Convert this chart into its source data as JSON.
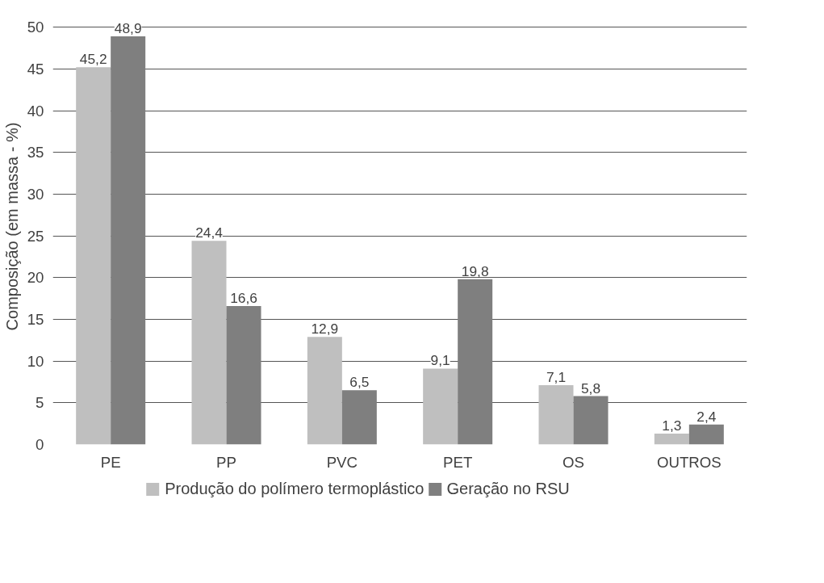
{
  "chart_data": {
    "type": "bar",
    "ylabel": "Composição (em massa - %)",
    "categories": [
      "PE",
      "PP",
      "PVC",
      "PET",
      "OS",
      "OUTROS"
    ],
    "series": [
      {
        "name": "Produção do polímero termoplástico",
        "color": "#bfbfbf",
        "values": [
          45.2,
          24.4,
          12.9,
          9.1,
          7.1,
          1.3
        ],
        "value_labels": [
          "45,2",
          "24,4",
          "12,9",
          "9,1",
          "7,1",
          "1,3"
        ]
      },
      {
        "name": "Geração no RSU",
        "color": "#7f7f7f",
        "values": [
          48.9,
          16.6,
          6.5,
          19.8,
          5.8,
          2.4
        ],
        "value_labels": [
          "48,9",
          "16,6",
          "6,5",
          "19,8",
          "5,8",
          "2,4"
        ]
      }
    ],
    "ylim": [
      0,
      50
    ],
    "yticks": [
      0,
      5,
      10,
      15,
      20,
      25,
      30,
      35,
      40,
      45,
      50
    ],
    "grid": "y",
    "legend": "bottom"
  }
}
